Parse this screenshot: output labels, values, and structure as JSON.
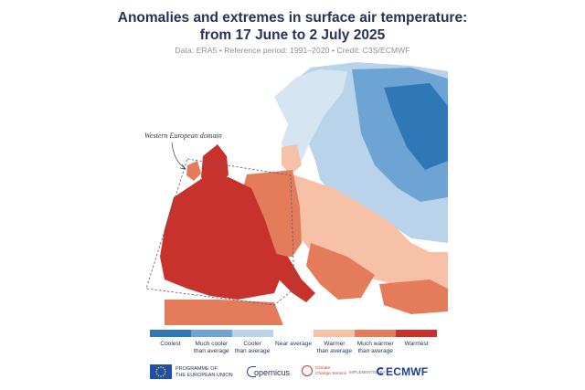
{
  "title": {
    "line1": "Anomalies and extremes in surface air temperature:",
    "line2": "from 17 June to 2 July 2025"
  },
  "subtitle": "Data: ERA5 • Reference period: 1991–2020 • Credit: C3S/ECMWF",
  "map": {
    "annotation": "Western European domain",
    "icon": "europe-temperature-anomaly-map"
  },
  "legend": {
    "categories": [
      {
        "label_line1": "Coolest",
        "label_line2": "",
        "color": "#2f78b8"
      },
      {
        "label_line1": "Much cooler",
        "label_line2": "than average",
        "color": "#6da4d3"
      },
      {
        "label_line1": "Cooler",
        "label_line2": "than average",
        "color": "#b9d4ea"
      },
      {
        "label_line1": "Near average",
        "label_line2": "",
        "color": "#ffffff"
      },
      {
        "label_line1": "Warmer",
        "label_line2": "than average",
        "color": "#f6c1a6"
      },
      {
        "label_line1": "Much warmer",
        "label_line2": "than average",
        "color": "#e47c5c"
      },
      {
        "label_line1": "Warmest",
        "label_line2": "",
        "color": "#c7332c"
      }
    ]
  },
  "footer": {
    "eu_line1": "PROGRAMME OF",
    "eu_line2": "THE EUROPEAN UNION",
    "copernicus": "opernicus",
    "c3s_line1": "Climate",
    "c3s_line2": "Change Service",
    "implemented": "IMPLEMENTED BY",
    "ecmwf": "ECMWF"
  }
}
